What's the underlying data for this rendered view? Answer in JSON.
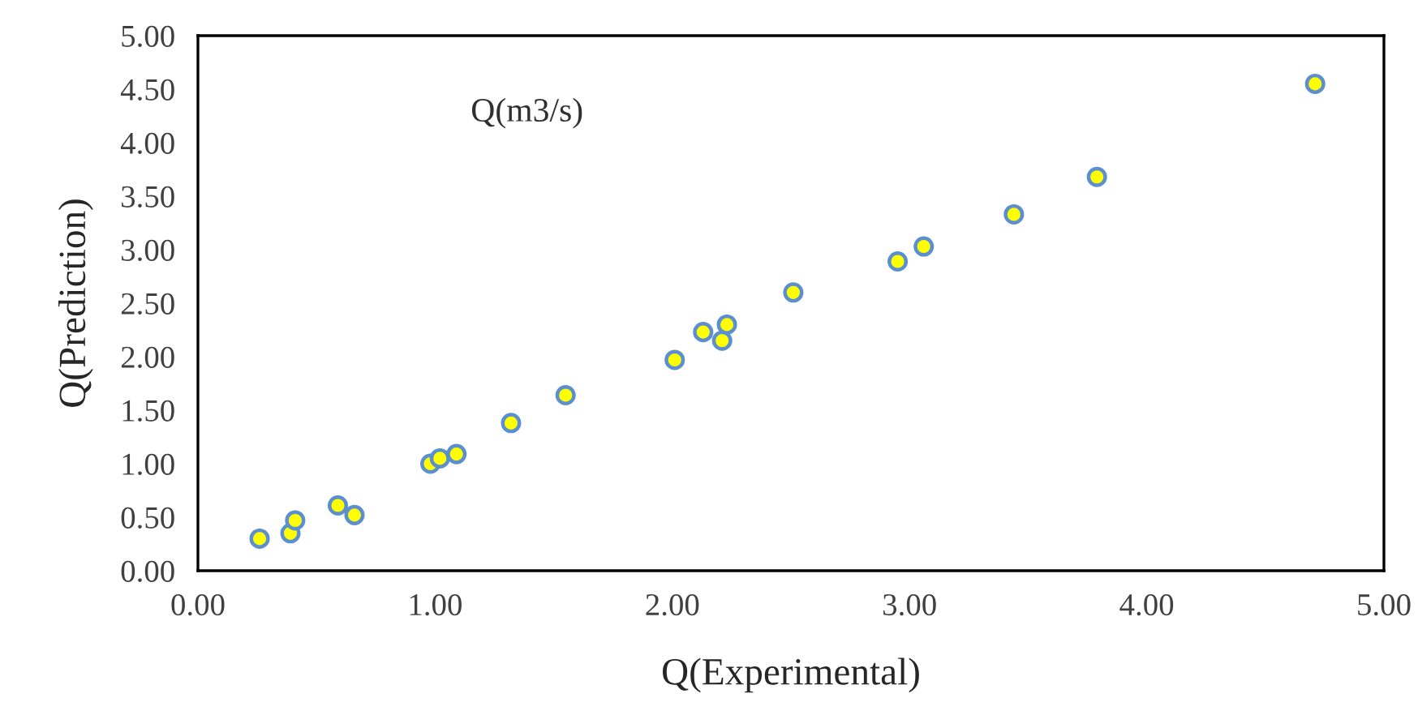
{
  "chart_data": {
    "type": "scatter",
    "xlabel": "Q(Experimental)",
    "ylabel": "Q(Prediction)",
    "annotations": [
      "Q(m3/s)"
    ],
    "x": [
      0.26,
      0.39,
      0.41,
      0.59,
      0.66,
      0.98,
      1.02,
      1.09,
      1.32,
      1.55,
      2.01,
      2.13,
      2.21,
      2.23,
      2.51,
      2.95,
      3.06,
      3.44,
      3.79,
      4.71
    ],
    "series": [
      {
        "color": "#ffff00",
        "values": [
          0.3,
          0.35,
          0.47,
          0.61,
          0.52,
          1.0,
          1.05,
          1.09,
          1.38,
          1.64,
          1.97,
          2.23,
          2.15,
          2.3,
          2.6,
          2.89,
          3.03,
          3.33,
          3.68,
          4.55
        ]
      }
    ],
    "xlim": [
      0,
      5
    ],
    "ylim": [
      0,
      5
    ],
    "xticks": [
      {
        "value": 0,
        "label": "0.00"
      },
      {
        "value": 1,
        "label": "1.00"
      },
      {
        "value": 2,
        "label": "2.00"
      },
      {
        "value": 3,
        "label": "3.00"
      },
      {
        "value": 4,
        "label": "4.00"
      },
      {
        "value": 5,
        "label": "5.00"
      }
    ],
    "yticks": [
      {
        "value": 0,
        "label": "0.00"
      },
      {
        "value": 0.5,
        "label": "0.50"
      },
      {
        "value": 1,
        "label": "1.00"
      },
      {
        "value": 1.5,
        "label": "1.50"
      },
      {
        "value": 2,
        "label": "2.00"
      },
      {
        "value": 2.5,
        "label": "2.50"
      },
      {
        "value": 3,
        "label": "3.00"
      },
      {
        "value": 3.5,
        "label": "3.50"
      },
      {
        "value": 4,
        "label": "4.00"
      },
      {
        "value": 4.5,
        "label": "4.50"
      },
      {
        "value": 5,
        "label": "5.00"
      }
    ],
    "grid": false,
    "legend": false,
    "marker": "circle"
  }
}
